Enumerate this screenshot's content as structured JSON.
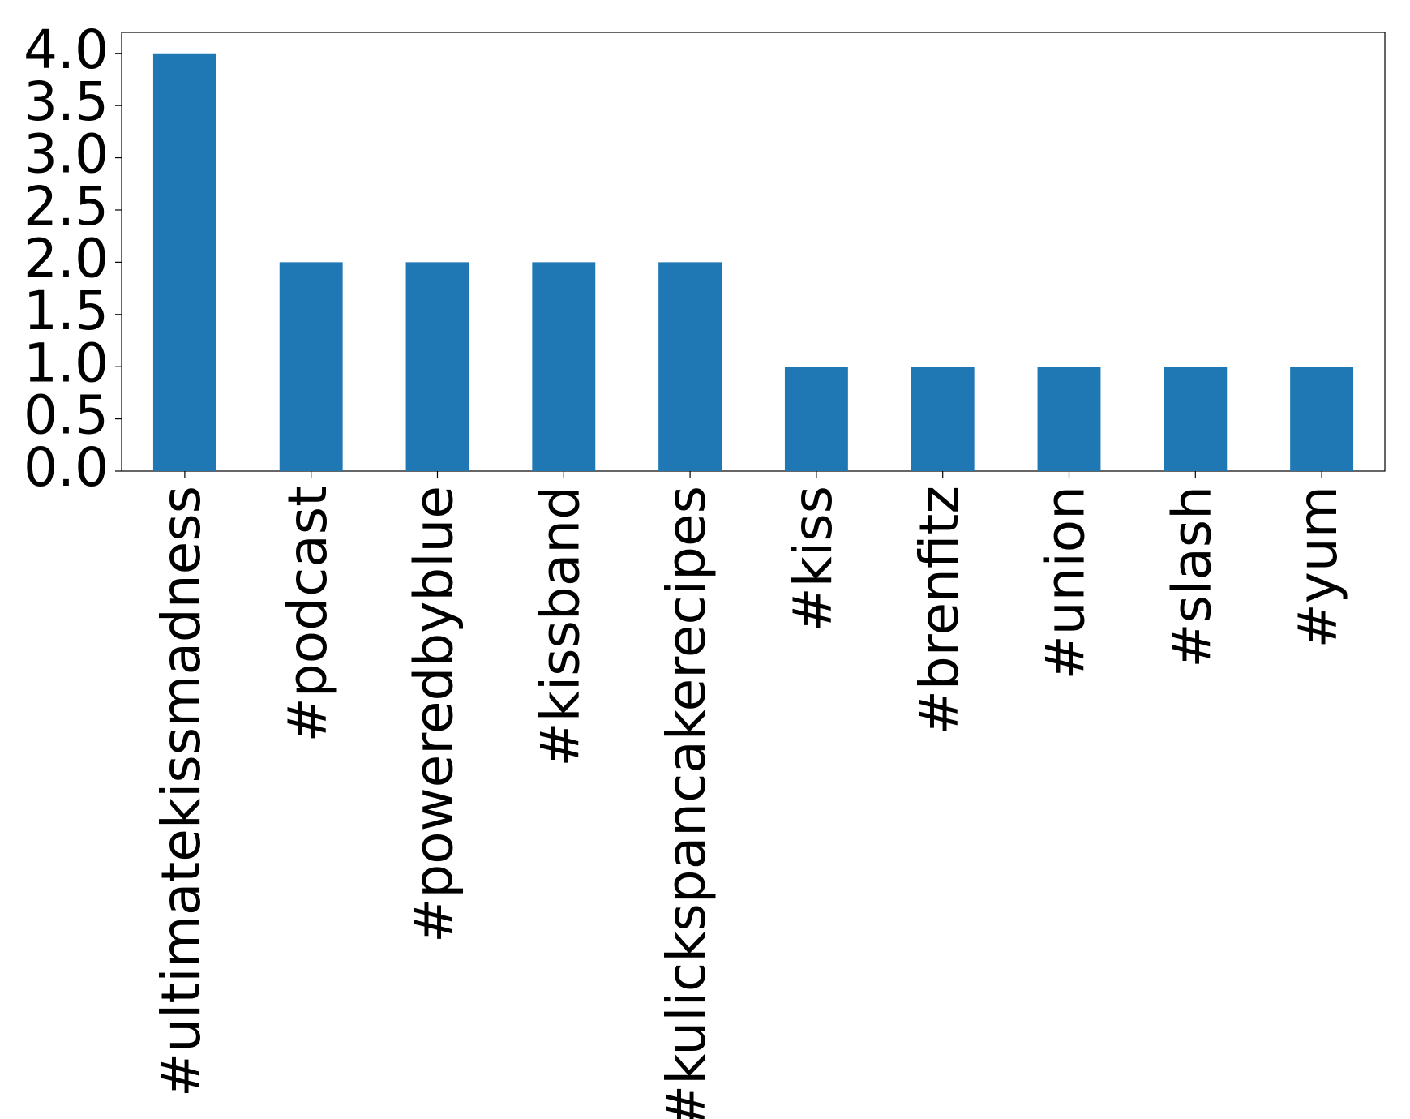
{
  "chart_data": {
    "type": "bar",
    "categories": [
      "#ultimatekissmadness",
      "#podcast",
      "#poweredbyblue",
      "#kissband",
      "#kulickspancakerecipes",
      "#kiss",
      "#brenfitz",
      "#union",
      "#slash",
      "#yum"
    ],
    "values": [
      4,
      2,
      2,
      2,
      2,
      1,
      1,
      1,
      1,
      1
    ],
    "color": "#1f77b4",
    "ylim": [
      0,
      4.2
    ],
    "yticks": [
      {
        "value": 0,
        "label": "0.0"
      },
      0.5,
      {
        "value": 1,
        "label": "1.0"
      },
      1.5,
      {
        "value": 2,
        "label": "2.0"
      },
      2.5,
      {
        "value": 3,
        "label": "3.0"
      },
      3.5,
      {
        "value": 4,
        "label": "4.0"
      }
    ],
    "grid": false
  }
}
